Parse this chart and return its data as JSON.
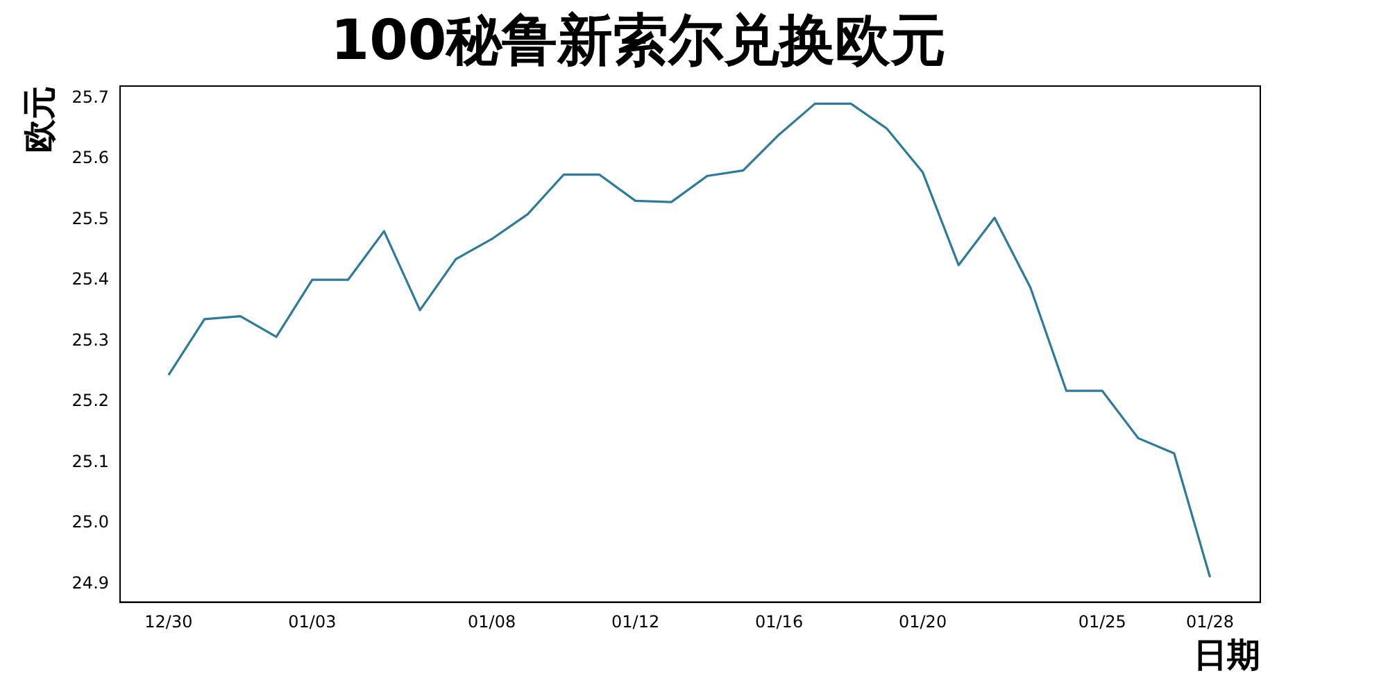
{
  "chart_data": {
    "type": "line",
    "title": "100秘鲁新索尔兑换欧元",
    "xlabel": "日期",
    "ylabel": "欧元",
    "categories": [
      "12/30",
      null,
      null,
      null,
      "01/03",
      null,
      null,
      null,
      null,
      "01/08",
      null,
      null,
      null,
      "01/12",
      null,
      null,
      null,
      "01/16",
      null,
      null,
      null,
      "01/20",
      null,
      null,
      null,
      null,
      "01/25",
      null,
      null,
      "01/28"
    ],
    "series": [
      {
        "color": "#2e7a9a",
        "values": [
          25.244,
          25.336,
          25.341,
          25.307,
          25.401,
          25.401,
          25.481,
          25.351,
          25.435,
          25.468,
          25.509,
          25.574,
          25.574,
          25.531,
          25.529,
          25.572,
          25.581,
          25.64,
          25.691,
          25.691,
          25.65,
          25.578,
          25.425,
          25.503,
          25.388,
          25.218,
          25.218,
          25.14,
          25.115,
          24.911
        ]
      }
    ],
    "ylim": [
      24.87,
      25.72
    ],
    "yticks": [
      {
        "value": 24.9,
        "label": "24.9"
      },
      {
        "value": 25.0,
        "label": "25.0"
      },
      {
        "value": 25.1,
        "label": "25.1"
      },
      {
        "value": 25.2,
        "label": "25.2"
      },
      {
        "value": 25.3,
        "label": "25.3"
      },
      {
        "value": 25.4,
        "label": "25.4"
      },
      {
        "value": 25.5,
        "label": "25.5"
      },
      {
        "value": 25.6,
        "label": "25.6"
      },
      {
        "value": 25.7,
        "label": "25.7"
      }
    ],
    "grid": false,
    "legend": false,
    "marker": "none",
    "line_style": "solid"
  }
}
